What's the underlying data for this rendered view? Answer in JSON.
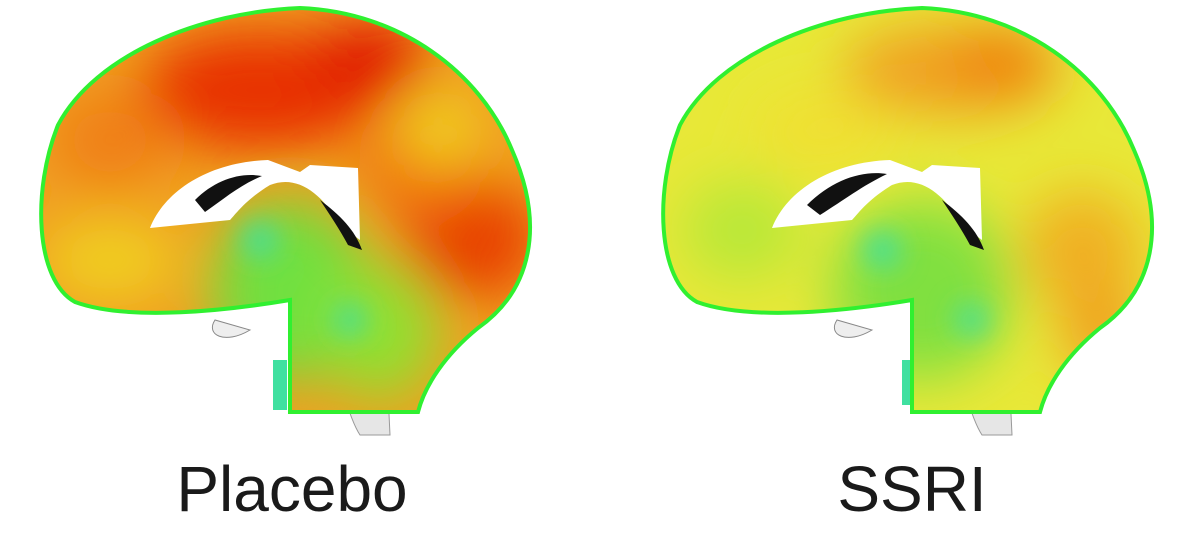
{
  "panels": [
    {
      "label": "Placebo",
      "dominant_color": "#f07010",
      "hot_color": "#e82000"
    },
    {
      "label": "SSRI",
      "dominant_color": "#e8e830",
      "hot_color": "#f09010"
    }
  ],
  "colors": {
    "outline": "#30f030",
    "low": "#60e040",
    "mid": "#f0f020"
  }
}
